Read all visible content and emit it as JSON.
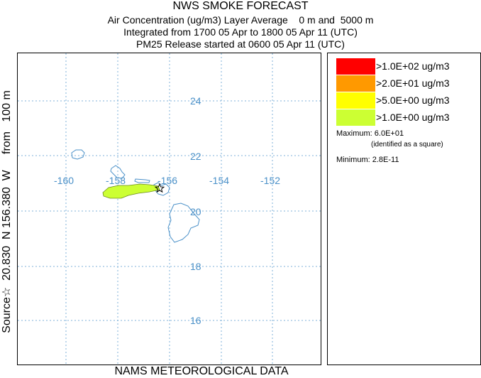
{
  "title": {
    "line1": "NWS SMOKE FORECAST",
    "line2": "Air Concentration (ug/m3) Layer Average    0 m and  5000 m",
    "line3": "Integrated from 1700 05 Apr to 1800 05 Apr 11 (UTC)",
    "line4": "PM25 Release started at 0600 05 Apr 11 (UTC)"
  },
  "side_label": "Source☆  20.830  N 156.380  W     from   100 m",
  "footer": "NAMS METEOROLOGICAL DATA",
  "map": {
    "longitude_labels": [
      "-160",
      "-158",
      "-156",
      "-154",
      "-152"
    ],
    "latitude_labels": [
      "24",
      "22",
      "20",
      "18",
      "16"
    ],
    "grid_color": "#7fb2d8",
    "coast_color": "#4a90c8",
    "plume_color": "#ccff33",
    "source": {
      "lat": 20.83,
      "lon": -156.38,
      "icon": "star-icon"
    }
  },
  "legend": {
    "items": [
      {
        "label": ">1.0E+02 ug/m3",
        "color": "#ff0000"
      },
      {
        "label": ">2.0E+01 ug/m3",
        "color": "#ff9900"
      },
      {
        "label": ">5.0E+00 ug/m3",
        "color": "#ffff00"
      },
      {
        "label": ">1.0E+00 ug/m3",
        "color": "#ccff33"
      }
    ],
    "maximum": "Maximum: 6.0E+01",
    "maximum_note": "(identified as a square)",
    "minimum": "Minimum: 2.8E-11"
  }
}
